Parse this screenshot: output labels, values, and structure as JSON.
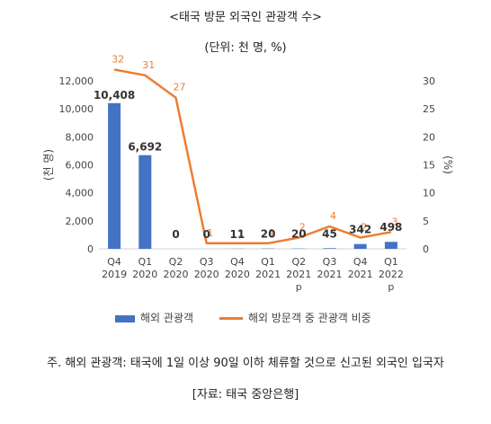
{
  "header": {
    "title": "<태국 방문 외국인 관광객 수>",
    "unit": "(단위: 천 명, %)"
  },
  "chart_data": {
    "type": "bar",
    "categories": [
      [
        "Q4",
        "2019"
      ],
      [
        "Q1",
        "2020"
      ],
      [
        "Q2",
        "2020"
      ],
      [
        "Q3",
        "2020"
      ],
      [
        "Q4",
        "2020"
      ],
      [
        "Q1",
        "2021"
      ],
      [
        "Q2",
        "2021",
        "p"
      ],
      [
        "Q3",
        "2021"
      ],
      [
        "Q4",
        "2021"
      ],
      [
        "Q1",
        "2022",
        "p"
      ]
    ],
    "series": [
      {
        "name": "해외 관광객",
        "type": "bar",
        "axis": "left",
        "color": "#4472c4",
        "values": [
          10408,
          6692,
          0,
          0,
          11,
          20,
          20,
          45,
          342,
          498
        ],
        "labels": [
          "10,408",
          "6,692",
          "0",
          "0",
          "11",
          "20",
          "20",
          "45",
          "342",
          "498"
        ]
      },
      {
        "name": "해외 방문객 중 관광객 비중",
        "type": "line",
        "axis": "right",
        "color": "#ed7d31",
        "values": [
          32,
          31,
          27,
          1,
          1,
          1,
          2,
          4,
          2,
          3
        ],
        "labels": [
          "32",
          "31",
          "27",
          "1",
          "1",
          "1",
          "2",
          "4",
          "2",
          "3"
        ]
      }
    ],
    "ylabel": "(천 명)",
    "y2label": "(%)",
    "ylim": [
      0,
      12000
    ],
    "y2lim": [
      0,
      30
    ],
    "yticks": [
      "0",
      "2,000",
      "4,000",
      "6,000",
      "8,000",
      "10,000",
      "12,000"
    ],
    "y2ticks": [
      "0",
      "5",
      "10",
      "15",
      "20",
      "25",
      "30"
    ],
    "grid": false,
    "legend_position": "bottom"
  },
  "footer": {
    "note": "주. 해외 관광객: 태국에 1일 이상 90일 이하 체류할 것으로 신고된 외국인 입국자",
    "source": "[자료: 태국 중앙은행]"
  }
}
